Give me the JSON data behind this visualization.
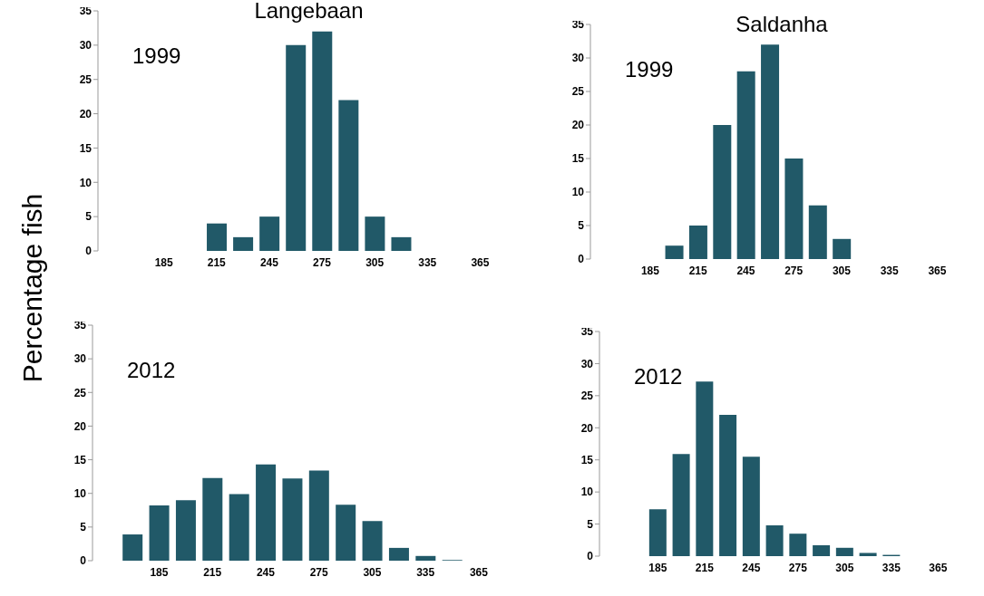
{
  "chart_data": [
    {
      "type": "bar",
      "title": "Langebaan",
      "ylabel": "Percentage fish",
      "annotations": [
        "1999"
      ],
      "categories": [
        null,
        null,
        "185",
        null,
        "215",
        null,
        "245",
        null,
        "275",
        null,
        "305",
        null,
        "335",
        null,
        "365",
        null
      ],
      "values": [
        0,
        0,
        0,
        0,
        4,
        2,
        5,
        30,
        32,
        22,
        5,
        2,
        0,
        0,
        0,
        0
      ],
      "color": "#215968",
      "ylim": [
        0,
        35
      ],
      "yticks": [
        0,
        5,
        10,
        15,
        20,
        25,
        30,
        35
      ],
      "grid": false,
      "legend": false
    },
    {
      "type": "bar",
      "title": "Saldanha",
      "annotations": [
        "1999"
      ],
      "categories": [
        null,
        null,
        "185",
        null,
        "215",
        null,
        "245",
        null,
        "275",
        null,
        "305",
        null,
        "335",
        null,
        "365",
        null
      ],
      "values": [
        0,
        0,
        0,
        2,
        5,
        20,
        28,
        32,
        15,
        8,
        3,
        0,
        0,
        0,
        0,
        0
      ],
      "color": "#215968",
      "ylim": [
        0,
        35
      ],
      "yticks": [
        0,
        5,
        10,
        15,
        20,
        25,
        30,
        35
      ],
      "grid": false,
      "legend": false
    },
    {
      "type": "bar",
      "annotations": [
        "2012"
      ],
      "categories": [
        null,
        null,
        "185",
        null,
        "215",
        null,
        "245",
        null,
        "275",
        null,
        "305",
        null,
        "335",
        null,
        "365",
        null
      ],
      "values": [
        0,
        3.9,
        8.2,
        9.0,
        12.3,
        9.9,
        14.3,
        12.2,
        13.4,
        8.3,
        5.9,
        1.9,
        0.7,
        0.1,
        0,
        0
      ],
      "color": "#215968",
      "ylim": [
        0,
        35
      ],
      "yticks": [
        0,
        5,
        10,
        15,
        20,
        25,
        30,
        35
      ],
      "grid": false,
      "legend": false
    },
    {
      "type": "bar",
      "annotations": [
        "2012"
      ],
      "categories": [
        null,
        null,
        "185",
        null,
        "215",
        null,
        "245",
        null,
        "275",
        null,
        "305",
        null,
        "335",
        null,
        "365",
        null
      ],
      "values": [
        0,
        0,
        7.3,
        15.9,
        27.2,
        22.0,
        15.5,
        4.8,
        3.5,
        1.7,
        1.3,
        0.5,
        0.2,
        0,
        0,
        0
      ],
      "color": "#215968",
      "ylim": [
        0,
        35
      ],
      "yticks": [
        0,
        5,
        10,
        15,
        20,
        25,
        30,
        35
      ],
      "grid": false,
      "legend": false
    }
  ]
}
